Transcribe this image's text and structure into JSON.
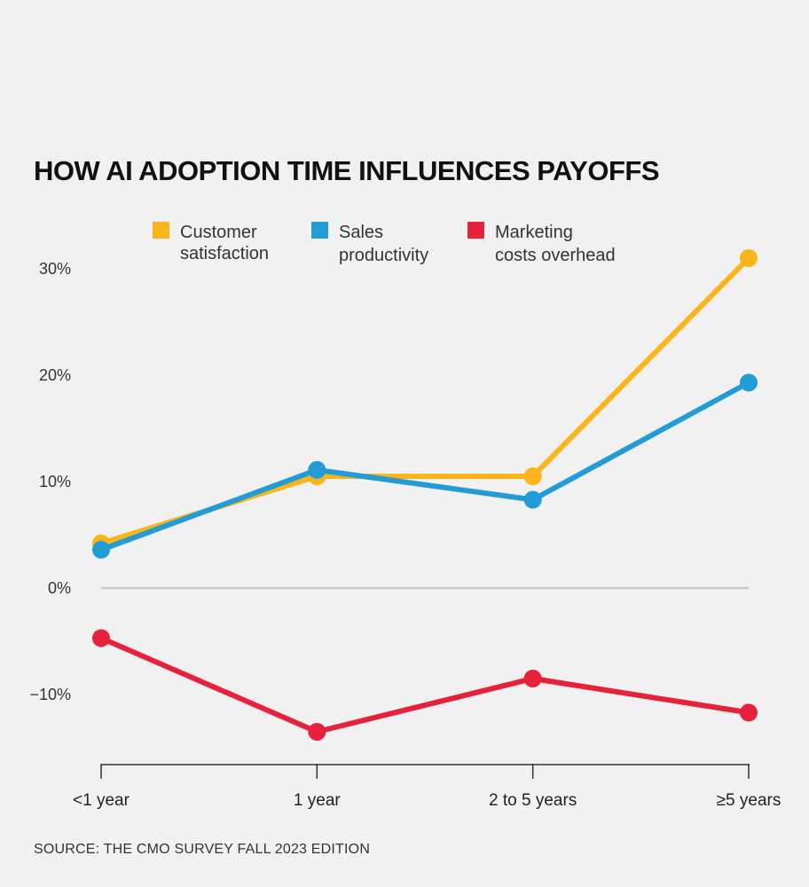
{
  "chart_data": {
    "type": "line",
    "title": "HOW AI ADOPTION TIME INFLUENCES PAYOFFS",
    "categories": [
      "<1 year",
      "1 year",
      "2 to 5 years",
      "≥5 years"
    ],
    "series": [
      {
        "name": "Customer satisfaction",
        "legend_lines": [
          "Customer",
          "satisfaction"
        ],
        "color": "#f9b51b",
        "values": [
          4.2,
          10.5,
          10.5,
          31.0
        ]
      },
      {
        "name": "Sales productivity",
        "legend_lines": [
          "Sales",
          "productivity"
        ],
        "color": "#229bd6",
        "values": [
          3.6,
          11.1,
          8.3,
          19.3
        ]
      },
      {
        "name": "Marketing costs overhead",
        "legend_lines": [
          "Marketing",
          "costs overhead"
        ],
        "color": "#e8213a",
        "values": [
          -4.7,
          -13.5,
          -8.5,
          -11.7
        ]
      }
    ],
    "yticks": [
      {
        "value": 30,
        "label": "30%",
        "color": "#333333"
      },
      {
        "value": 20,
        "label": "20%",
        "color": "#333333"
      },
      {
        "value": 10,
        "label": "10%",
        "color": "#333333"
      },
      {
        "value": 0,
        "label": "0%",
        "color": "#333333"
      },
      {
        "value": -10,
        "label": "−10%",
        "color": "#e8213a"
      }
    ],
    "ylim": [
      -15,
      33
    ],
    "zero_line_color": "#c8c9c8",
    "axis_color": "#333333",
    "source": "SOURCE: THE CMO SURVEY FALL 2023 EDITION"
  }
}
